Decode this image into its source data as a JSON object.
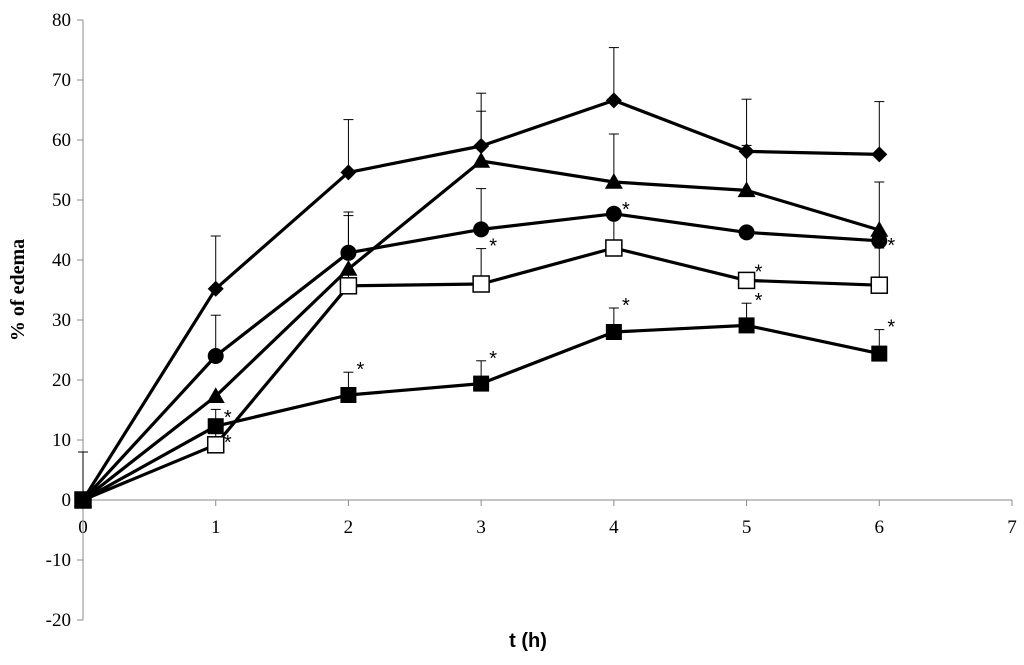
{
  "chart_data": {
    "type": "line",
    "title": "",
    "xlabel": "t (h)",
    "ylabel": "% of edema",
    "xlim": [
      0,
      7
    ],
    "ylim": [
      -20,
      80
    ],
    "xticks": [
      "0",
      "1",
      "2",
      "3",
      "4",
      "5",
      "6",
      "7"
    ],
    "yticks": [
      "80",
      "70",
      "60",
      "50",
      "40",
      "30",
      "20",
      "10",
      "0",
      "-10",
      "-20"
    ],
    "grid": false,
    "legend": "none",
    "series": [
      {
        "marker": "diamond",
        "x": [
          0,
          1,
          2,
          3,
          4,
          5,
          6
        ],
        "y": [
          0,
          35.2,
          54.6,
          59.0,
          66.6,
          58.1,
          57.6
        ],
        "err": [
          8,
          8.8,
          8.8,
          8.8,
          8.8,
          8.7,
          8.8
        ],
        "sig": [
          false,
          false,
          false,
          false,
          false,
          false,
          false
        ]
      },
      {
        "marker": "triangle",
        "x": [
          0,
          1,
          2,
          3,
          4,
          5,
          6
        ],
        "y": [
          0,
          17.3,
          38.5,
          56.5,
          53.0,
          51.6,
          45.0
        ],
        "err": [
          0,
          0,
          9.5,
          8.3,
          8.0,
          7.5,
          8.0
        ],
        "sig": [
          false,
          false,
          false,
          false,
          false,
          false,
          false
        ]
      },
      {
        "marker": "circle",
        "x": [
          0,
          1,
          2,
          3,
          4,
          5,
          6
        ],
        "y": [
          0,
          24.0,
          41.2,
          45.1,
          47.7,
          44.6,
          43.2
        ],
        "err": [
          0,
          6.8,
          6.2,
          6.8,
          0,
          0,
          0
        ],
        "sig": [
          false,
          false,
          false,
          false,
          false,
          false,
          false
        ]
      },
      {
        "marker": "square-open",
        "x": [
          0,
          1,
          2,
          3,
          4,
          5,
          6
        ],
        "y": [
          0,
          9.2,
          35.7,
          36.0,
          42.0,
          36.6,
          35.8
        ],
        "err": [
          0,
          5.9,
          5.9,
          5.9,
          6.0,
          0,
          6.2
        ],
        "sig": [
          false,
          true,
          false,
          true,
          true,
          true,
          true
        ]
      },
      {
        "marker": "square-filled",
        "x": [
          0,
          1,
          2,
          3,
          4,
          5,
          6
        ],
        "y": [
          0,
          12.3,
          17.5,
          19.4,
          28.0,
          29.1,
          24.4
        ],
        "err": [
          0,
          0,
          3.8,
          3.8,
          4.0,
          3.7,
          4.0
        ],
        "sig": [
          false,
          true,
          true,
          true,
          true,
          true,
          true
        ]
      }
    ]
  }
}
